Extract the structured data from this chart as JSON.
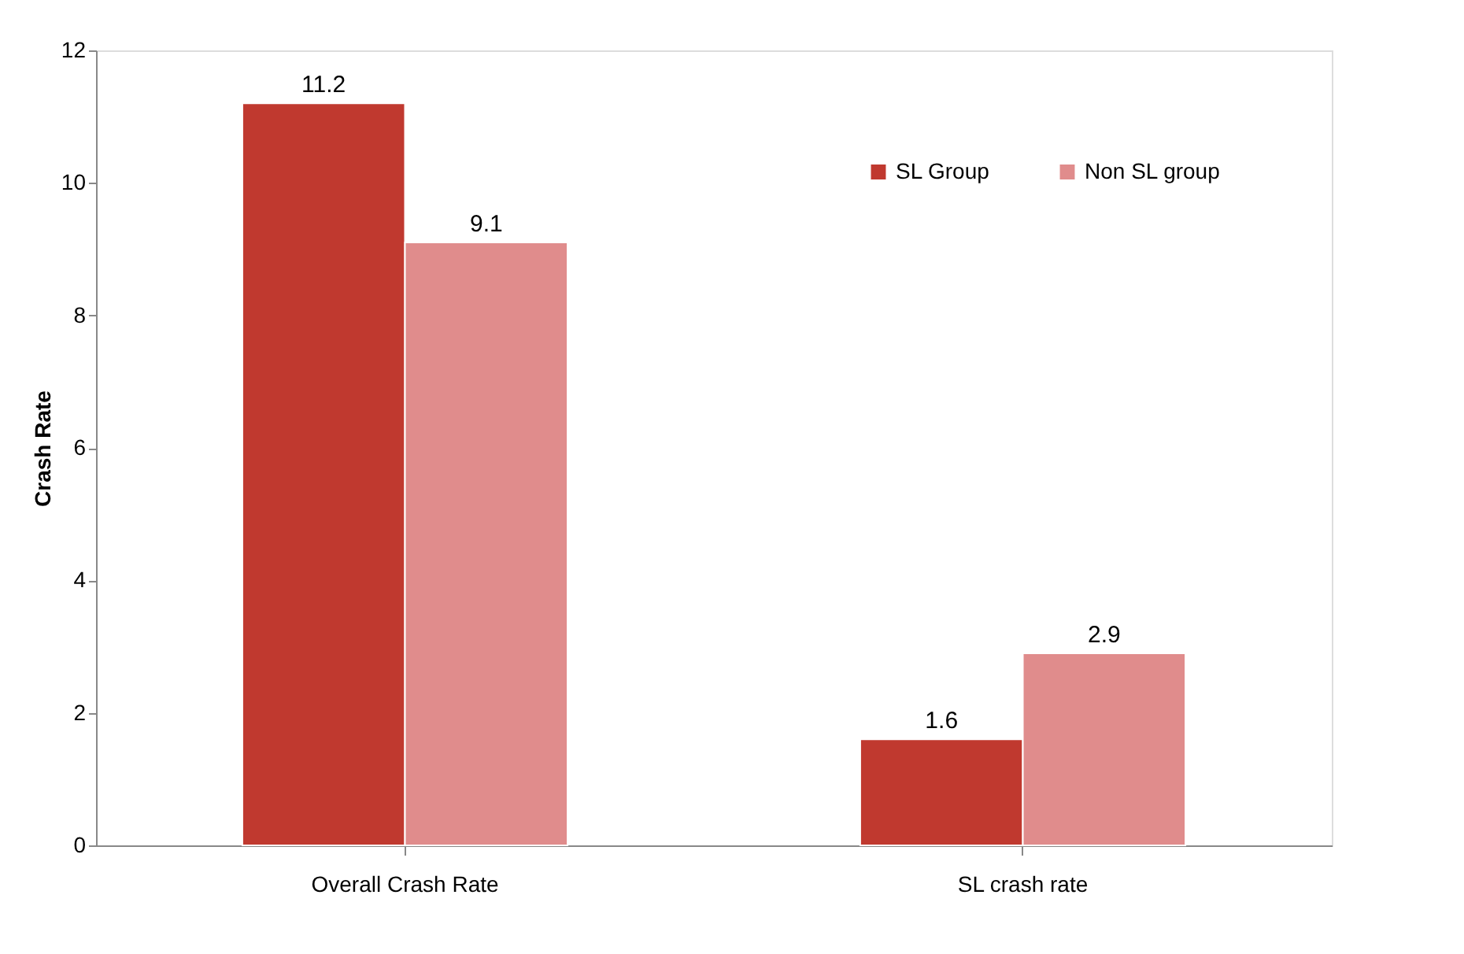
{
  "chart_data": {
    "type": "bar",
    "ylabel": "Crash Rate",
    "categories": [
      "Overall Crash Rate",
      "SL crash rate"
    ],
    "series": [
      {
        "name": "SL Group",
        "color": "#c0392f",
        "values": [
          11.2,
          1.6
        ]
      },
      {
        "name": "Non SL group",
        "color": "#e08c8c",
        "values": [
          9.1,
          2.9
        ]
      }
    ],
    "ylim": [
      0,
      12
    ],
    "yticks": [
      0,
      2,
      4,
      6,
      8,
      10,
      12
    ],
    "grid": false,
    "legend": "top right",
    "data_labels": true
  }
}
